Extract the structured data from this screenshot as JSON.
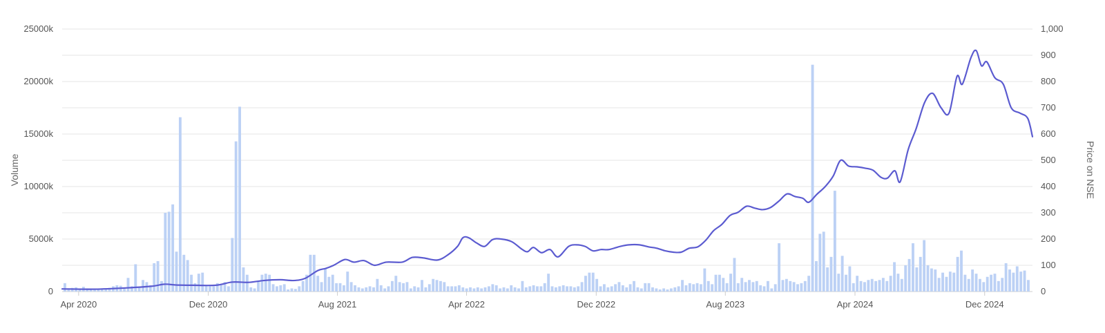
{
  "chart_data": {
    "type": "bar+line",
    "title": "",
    "left_axis": {
      "label": "Volume",
      "ylim": [
        0,
        25000
      ],
      "ticks": [
        0,
        5000,
        10000,
        15000,
        20000,
        25000
      ],
      "tick_labels": [
        "0",
        "5000k",
        "10000k",
        "15000k",
        "20000k",
        "25000k"
      ]
    },
    "right_axis": {
      "label": "Price on NSE",
      "ylim": [
        0,
        1000
      ],
      "ticks": [
        0,
        100,
        200,
        300,
        400,
        500,
        600,
        700,
        800,
        900,
        1000
      ],
      "tick_labels": [
        "0",
        "100",
        "200",
        "300",
        "400",
        "500",
        "600",
        "700",
        "800",
        "900",
        "1,000"
      ]
    },
    "x_axis": {
      "start": "2020-03-01",
      "end": "2025-03-01",
      "ticks": [
        "2020-04-01",
        "2020-12-01",
        "2021-08-01",
        "2022-04-01",
        "2022-12-01",
        "2023-08-01",
        "2024-04-01",
        "2024-12-01"
      ],
      "tick_labels": [
        "Apr 2020",
        "Dec 2020",
        "Aug 2021",
        "Apr 2022",
        "Dec 2022",
        "Aug 2023",
        "Apr 2024",
        "Dec 2024"
      ]
    },
    "grid": true,
    "colors": {
      "volume": "#bcd1f5",
      "price": "#5b5bd0"
    },
    "volume_series": {
      "name": "Volume",
      "unit": "thousands",
      "start": "2020-03-01",
      "interval": "weekly",
      "values": [
        800,
        300,
        350,
        400,
        300,
        450,
        300,
        200,
        250,
        200,
        250,
        300,
        350,
        500,
        600,
        550,
        400,
        1300,
        500,
        2600,
        400,
        1100,
        900,
        600,
        2700,
        2900,
        1000,
        7500,
        7600,
        8300,
        3800,
        16600,
        3500,
        3000,
        1600,
        800,
        1700,
        1800,
        600,
        500,
        500,
        800,
        600,
        900,
        500,
        5100,
        14300,
        17600,
        2300,
        1600,
        400,
        300,
        1000,
        1600,
        1700,
        1600,
        700,
        500,
        600,
        700,
        200,
        300,
        250,
        500,
        1000,
        1600,
        3500,
        3500,
        1500,
        900,
        2200,
        1400,
        1600,
        800,
        800,
        600,
        1900,
        900,
        600,
        400,
        300,
        400,
        500,
        400,
        1200,
        600,
        300,
        500,
        1000,
        1500,
        900,
        800,
        900,
        300,
        500,
        400,
        1100,
        400,
        700,
        1200,
        1100,
        1000,
        900,
        500,
        500,
        500,
        600,
        400,
        300,
        400,
        300,
        400,
        300,
        400,
        500,
        700,
        600,
        300,
        400,
        300,
        600,
        400,
        300,
        1000,
        400,
        500,
        600,
        500,
        500,
        800,
        1700,
        500,
        400,
        500,
        600,
        500,
        500,
        400,
        500,
        900,
        1500,
        1800,
        1800,
        1200,
        500,
        700,
        400,
        500,
        700,
        900,
        600,
        400,
        700,
        1000,
        400,
        300,
        800,
        800,
        400,
        300,
        200,
        300,
        200,
        300,
        400,
        500,
        1100,
        600,
        800,
        700,
        800,
        700,
        2200,
        1000,
        700,
        1600,
        1600,
        1300,
        800,
        1700,
        3200,
        800,
        1300,
        900,
        1100,
        900,
        1000,
        600,
        500,
        1000,
        300,
        700,
        4600,
        1100,
        1200,
        1000,
        900,
        700,
        800,
        1000,
        1500,
        21600,
        2900,
        5500,
        5700,
        2300,
        3300,
        9600,
        1700,
        3400,
        1600,
        2400,
        800,
        1500,
        1000,
        900,
        1100,
        1200,
        1000,
        1100,
        1300,
        1000,
        1500,
        2800,
        1700,
        1200,
        2500,
        3100,
        4600,
        2300,
        3300,
        4900,
        2500,
        2200,
        2100,
        1300,
        1800,
        1400,
        1900,
        1800,
        3300,
        3900,
        1600,
        1200,
        2100,
        1700,
        1200,
        900,
        1400,
        1600,
        1700,
        1000,
        1300,
        2700,
        2100,
        1800,
        2400,
        1900,
        2000,
        1100,
        900,
        1500,
        300
      ]
    },
    "price_series": {
      "name": "Price on NSE",
      "points": [
        [
          "2020-03-01",
          10
        ],
        [
          "2020-05-01",
          9
        ],
        [
          "2020-07-01",
          14
        ],
        [
          "2020-08-15",
          20
        ],
        [
          "2020-09-10",
          28
        ],
        [
          "2020-10-01",
          25
        ],
        [
          "2020-11-01",
          24
        ],
        [
          "2020-12-15",
          24
        ],
        [
          "2021-01-15",
          36
        ],
        [
          "2021-02-15",
          35
        ],
        [
          "2021-03-15",
          42
        ],
        [
          "2021-04-15",
          45
        ],
        [
          "2021-05-10",
          42
        ],
        [
          "2021-06-01",
          50
        ],
        [
          "2021-06-25",
          80
        ],
        [
          "2021-07-10",
          88
        ],
        [
          "2021-07-25",
          100
        ],
        [
          "2021-08-15",
          122
        ],
        [
          "2021-09-01",
          112
        ],
        [
          "2021-09-20",
          118
        ],
        [
          "2021-10-10",
          100
        ],
        [
          "2021-11-01",
          112
        ],
        [
          "2021-12-01",
          112
        ],
        [
          "2021-12-20",
          130
        ],
        [
          "2022-01-10",
          128
        ],
        [
          "2022-02-05",
          120
        ],
        [
          "2022-02-25",
          140
        ],
        [
          "2022-03-15",
          172
        ],
        [
          "2022-03-25",
          205
        ],
        [
          "2022-04-05",
          205
        ],
        [
          "2022-04-20",
          185
        ],
        [
          "2022-05-05",
          172
        ],
        [
          "2022-05-20",
          198
        ],
        [
          "2022-06-05",
          200
        ],
        [
          "2022-06-25",
          190
        ],
        [
          "2022-07-15",
          160
        ],
        [
          "2022-07-25",
          152
        ],
        [
          "2022-08-05",
          168
        ],
        [
          "2022-08-20",
          148
        ],
        [
          "2022-09-05",
          160
        ],
        [
          "2022-09-20",
          132
        ],
        [
          "2022-10-10",
          172
        ],
        [
          "2022-10-25",
          178
        ],
        [
          "2022-11-10",
          172
        ],
        [
          "2022-11-25",
          155
        ],
        [
          "2022-12-10",
          160
        ],
        [
          "2022-12-25",
          160
        ],
        [
          "2023-01-15",
          172
        ],
        [
          "2023-02-01",
          178
        ],
        [
          "2023-02-20",
          178
        ],
        [
          "2023-03-10",
          170
        ],
        [
          "2023-03-25",
          165
        ],
        [
          "2023-04-10",
          155
        ],
        [
          "2023-04-25",
          150
        ],
        [
          "2023-05-10",
          150
        ],
        [
          "2023-05-25",
          165
        ],
        [
          "2023-06-10",
          170
        ],
        [
          "2023-06-25",
          195
        ],
        [
          "2023-07-10",
          232
        ],
        [
          "2023-07-25",
          255
        ],
        [
          "2023-08-10",
          290
        ],
        [
          "2023-08-25",
          302
        ],
        [
          "2023-09-10",
          325
        ],
        [
          "2023-09-25",
          318
        ],
        [
          "2023-10-10",
          312
        ],
        [
          "2023-10-25",
          320
        ],
        [
          "2023-11-10",
          345
        ],
        [
          "2023-11-25",
          372
        ],
        [
          "2023-12-10",
          362
        ],
        [
          "2023-12-25",
          355
        ],
        [
          "2024-01-05",
          340
        ],
        [
          "2024-01-20",
          370
        ],
        [
          "2024-02-05",
          400
        ],
        [
          "2024-02-20",
          440
        ],
        [
          "2024-03-05",
          500
        ],
        [
          "2024-03-20",
          478
        ],
        [
          "2024-04-05",
          475
        ],
        [
          "2024-04-20",
          470
        ],
        [
          "2024-05-05",
          462
        ],
        [
          "2024-05-20",
          435
        ],
        [
          "2024-06-01",
          432
        ],
        [
          "2024-06-15",
          460
        ],
        [
          "2024-06-25",
          418
        ],
        [
          "2024-07-10",
          540
        ],
        [
          "2024-07-25",
          620
        ],
        [
          "2024-08-10",
          720
        ],
        [
          "2024-08-25",
          755
        ],
        [
          "2024-09-10",
          700
        ],
        [
          "2024-09-25",
          680
        ],
        [
          "2024-10-10",
          820
        ],
        [
          "2024-10-20",
          790
        ],
        [
          "2024-11-05",
          890
        ],
        [
          "2024-11-15",
          918
        ],
        [
          "2024-11-25",
          860
        ],
        [
          "2024-12-05",
          875
        ],
        [
          "2024-12-20",
          815
        ],
        [
          "2025-01-05",
          790
        ],
        [
          "2025-01-20",
          700
        ],
        [
          "2025-02-05",
          680
        ],
        [
          "2025-02-20",
          660
        ],
        [
          "2025-03-01",
          590
        ]
      ]
    }
  }
}
